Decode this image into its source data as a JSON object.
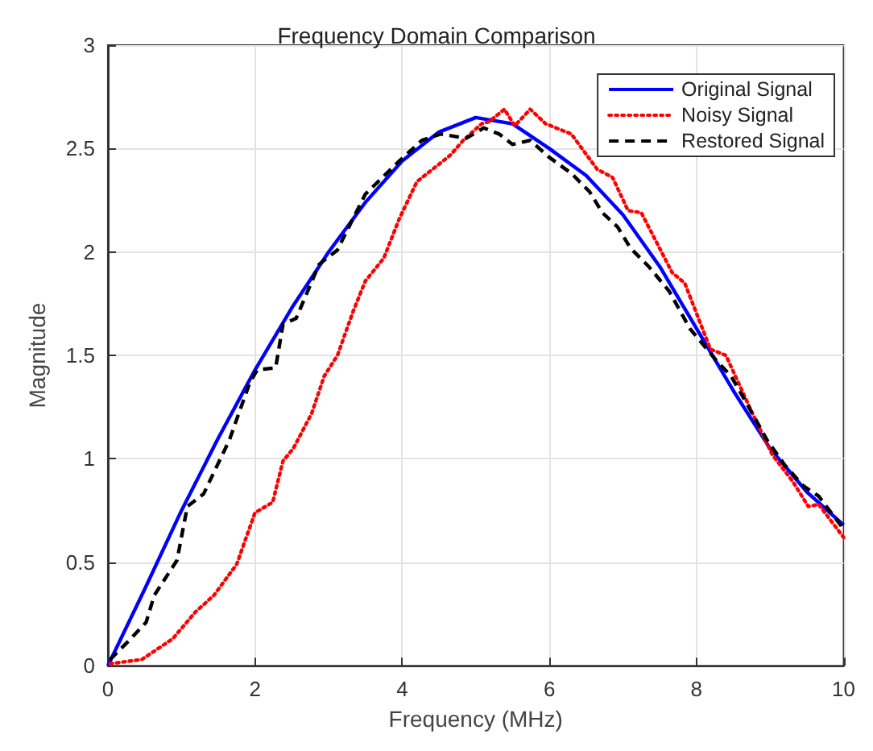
{
  "chart_data": {
    "type": "line",
    "title": "Frequency Domain Comparison",
    "xlabel": "Frequency (MHz)",
    "ylabel": "Magnitude",
    "xlim": [
      0,
      10
    ],
    "ylim": [
      0,
      3
    ],
    "xticks": [
      0,
      2,
      4,
      6,
      8,
      10
    ],
    "yticks": [
      0,
      0.5,
      1,
      1.5,
      2,
      2.5,
      3
    ],
    "grid": true,
    "legend": "top right",
    "marker": "none",
    "series": [
      {
        "name": "Original Signal",
        "color": "#0000ff",
        "line_style": "solid",
        "x": [
          0,
          0.5,
          1,
          1.5,
          2,
          2.5,
          3,
          3.5,
          4,
          4.5,
          5,
          5.5,
          6,
          6.5,
          7,
          7.5,
          8,
          8.5,
          9,
          9.5,
          10
        ],
        "values": [
          0,
          0.37,
          0.75,
          1.1,
          1.43,
          1.73,
          2.0,
          2.24,
          2.44,
          2.58,
          2.65,
          2.62,
          2.5,
          2.37,
          2.18,
          1.93,
          1.63,
          1.33,
          1.05,
          0.84,
          0.68
        ]
      },
      {
        "name": "Noisy Signal",
        "color": "#ff0000",
        "line_style": "dotted",
        "x": [
          0.03,
          0.46,
          0.88,
          1.19,
          1.44,
          1.75,
          2.0,
          2.24,
          2.38,
          2.52,
          2.77,
          2.94,
          3.12,
          3.33,
          3.5,
          3.75,
          3.96,
          4.2,
          4.52,
          4.66,
          4.83,
          5.08,
          5.18,
          5.39,
          5.53,
          5.74,
          5.95,
          6.3,
          6.65,
          6.86,
          7.07,
          7.25,
          7.67,
          7.84,
          8.19,
          8.4,
          8.76,
          9.03,
          9.31,
          9.52,
          9.66,
          10.0
        ],
        "values": [
          0.01,
          0.03,
          0.13,
          0.26,
          0.34,
          0.49,
          0.74,
          0.79,
          0.99,
          1.05,
          1.22,
          1.4,
          1.5,
          1.71,
          1.86,
          1.97,
          2.16,
          2.34,
          2.43,
          2.47,
          2.54,
          2.62,
          2.63,
          2.69,
          2.61,
          2.69,
          2.62,
          2.57,
          2.4,
          2.36,
          2.2,
          2.19,
          1.9,
          1.85,
          1.53,
          1.5,
          1.22,
          1.02,
          0.89,
          0.77,
          0.78,
          0.62
        ]
      },
      {
        "name": "Restored Signal",
        "color": "#000000",
        "line_style": "dashed",
        "x": [
          0.03,
          0.31,
          0.52,
          0.63,
          0.94,
          1.08,
          1.3,
          1.65,
          1.93,
          2.03,
          2.28,
          2.38,
          2.56,
          2.87,
          3.12,
          3.26,
          3.5,
          3.96,
          4.27,
          4.52,
          4.87,
          5.11,
          5.32,
          5.5,
          5.74,
          5.99,
          6.3,
          6.55,
          6.72,
          6.93,
          7.1,
          7.35,
          7.63,
          7.91,
          8.26,
          8.47,
          8.68,
          8.96,
          9.2,
          9.45,
          9.66,
          10.0
        ],
        "values": [
          0.03,
          0.13,
          0.21,
          0.34,
          0.51,
          0.77,
          0.83,
          1.09,
          1.37,
          1.43,
          1.44,
          1.65,
          1.68,
          1.94,
          2.01,
          2.11,
          2.28,
          2.44,
          2.54,
          2.57,
          2.55,
          2.6,
          2.57,
          2.52,
          2.54,
          2.46,
          2.38,
          2.29,
          2.19,
          2.12,
          2.02,
          1.93,
          1.81,
          1.63,
          1.48,
          1.4,
          1.27,
          1.09,
          0.97,
          0.87,
          0.82,
          0.66
        ]
      }
    ]
  }
}
